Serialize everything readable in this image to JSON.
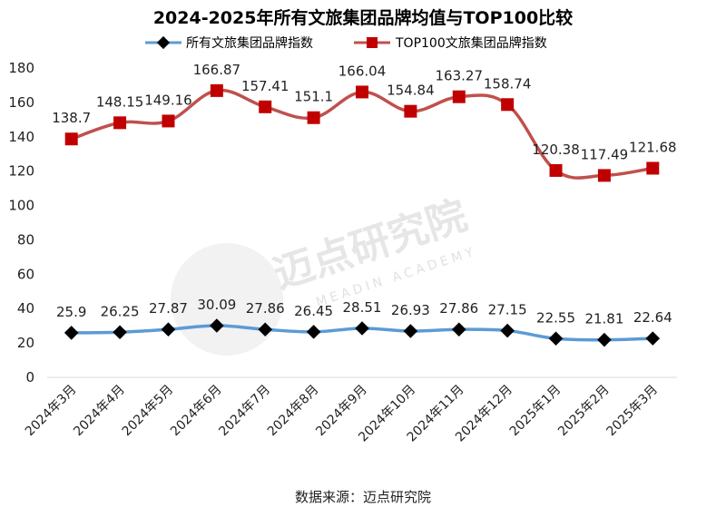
{
  "chart_data": {
    "type": "line",
    "title": "2024-2025年所有文旅集团品牌均值与TOP100比较",
    "categories": [
      "2024年3月",
      "2024年4月",
      "2024年5月",
      "2024年6月",
      "2024年7月",
      "2024年8月",
      "2024年9月",
      "2024年10月",
      "2024年11月",
      "2024年12月",
      "2025年1月",
      "2025年2月",
      "2025年3月"
    ],
    "series": [
      {
        "name": "所有文旅集团品牌指数",
        "color": "#5b9bd5",
        "marker": "diamond",
        "marker_color": "#000000",
        "values": [
          25.9,
          26.25,
          27.87,
          30.09,
          27.86,
          26.45,
          28.51,
          26.93,
          27.86,
          27.15,
          22.55,
          21.81,
          22.64
        ],
        "labels": [
          "25.9",
          "26.25",
          "27.87",
          "30.09",
          "27.86",
          "26.45",
          "28.51",
          "26.93",
          "27.86",
          "27.15",
          "22.55",
          "21.81",
          "22.64"
        ]
      },
      {
        "name": "TOP100文旅集团品牌指数",
        "color": "#c0504d",
        "marker": "square",
        "marker_color": "#c00000",
        "values": [
          138.7,
          148.15,
          149.16,
          166.87,
          157.41,
          151.1,
          166.04,
          154.84,
          163.27,
          158.74,
          120.38,
          117.49,
          121.68
        ],
        "labels": [
          "138.7",
          "148.15",
          "149.16",
          "166.87",
          "157.41",
          "151.1",
          "166.04",
          "154.84",
          "163.27",
          "158.74",
          "120.38",
          "117.49",
          "121.68"
        ]
      }
    ],
    "ylim": [
      0,
      180
    ],
    "yticks": [
      "0",
      "20",
      "40",
      "60",
      "80",
      "100",
      "120",
      "140",
      "160",
      "180"
    ],
    "grid": false,
    "legend_position": "top"
  },
  "source": "数据来源：迈点研究院",
  "watermark": {
    "text": "迈点研究院",
    "sub": "MEADIN ACADEMY"
  }
}
